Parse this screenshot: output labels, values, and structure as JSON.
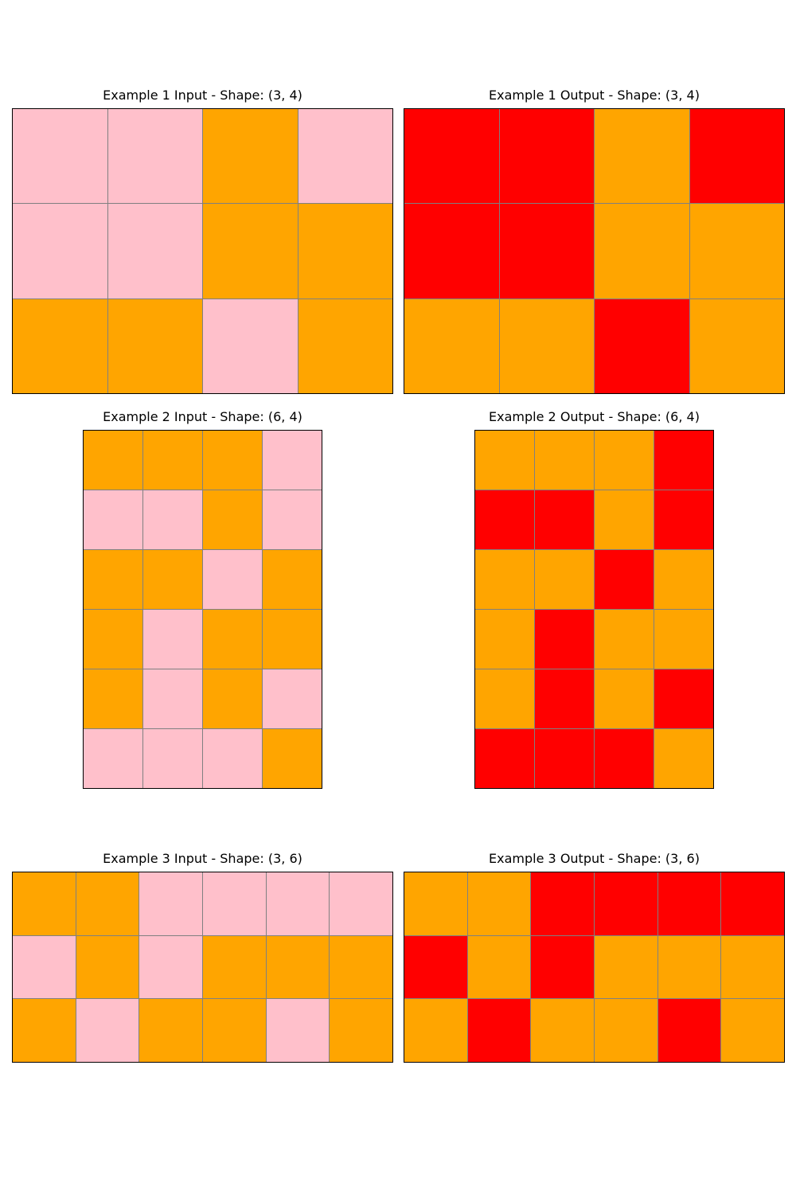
{
  "colors": {
    "pink": "#ffc0cb",
    "orange": "#ffa500",
    "red": "#ff0000",
    "gridline": "#808080",
    "border": "#000000"
  },
  "examples": [
    {
      "input": {
        "title": "Example 1 Input - Shape: (3, 4)",
        "grid": [
          [
            "pink",
            "pink",
            "orange",
            "pink"
          ],
          [
            "pink",
            "pink",
            "orange",
            "orange"
          ],
          [
            "orange",
            "orange",
            "pink",
            "orange"
          ]
        ]
      },
      "output": {
        "title": "Example 1 Output - Shape: (3, 4)",
        "grid": [
          [
            "red",
            "red",
            "orange",
            "red"
          ],
          [
            "red",
            "red",
            "orange",
            "orange"
          ],
          [
            "orange",
            "orange",
            "red",
            "orange"
          ]
        ]
      }
    },
    {
      "input": {
        "title": "Example 2 Input - Shape: (6, 4)",
        "grid": [
          [
            "orange",
            "orange",
            "orange",
            "pink"
          ],
          [
            "pink",
            "pink",
            "orange",
            "pink"
          ],
          [
            "orange",
            "orange",
            "pink",
            "orange"
          ],
          [
            "orange",
            "pink",
            "orange",
            "orange"
          ],
          [
            "orange",
            "pink",
            "orange",
            "pink"
          ],
          [
            "pink",
            "pink",
            "pink",
            "orange"
          ]
        ]
      },
      "output": {
        "title": "Example 2 Output - Shape: (6, 4)",
        "grid": [
          [
            "orange",
            "orange",
            "orange",
            "red"
          ],
          [
            "red",
            "red",
            "orange",
            "red"
          ],
          [
            "orange",
            "orange",
            "red",
            "orange"
          ],
          [
            "orange",
            "red",
            "orange",
            "orange"
          ],
          [
            "orange",
            "red",
            "orange",
            "red"
          ],
          [
            "red",
            "red",
            "red",
            "orange"
          ]
        ]
      }
    },
    {
      "input": {
        "title": "Example 3 Input - Shape: (3, 6)",
        "grid": [
          [
            "orange",
            "orange",
            "pink",
            "pink",
            "pink",
            "pink"
          ],
          [
            "pink",
            "orange",
            "pink",
            "orange",
            "orange",
            "orange"
          ],
          [
            "orange",
            "pink",
            "orange",
            "orange",
            "pink",
            "orange"
          ]
        ]
      },
      "output": {
        "title": "Example 3 Output - Shape: (3, 6)",
        "grid": [
          [
            "orange",
            "orange",
            "red",
            "red",
            "red",
            "red"
          ],
          [
            "red",
            "orange",
            "red",
            "orange",
            "orange",
            "orange"
          ],
          [
            "orange",
            "red",
            "orange",
            "orange",
            "red",
            "orange"
          ]
        ]
      }
    }
  ]
}
